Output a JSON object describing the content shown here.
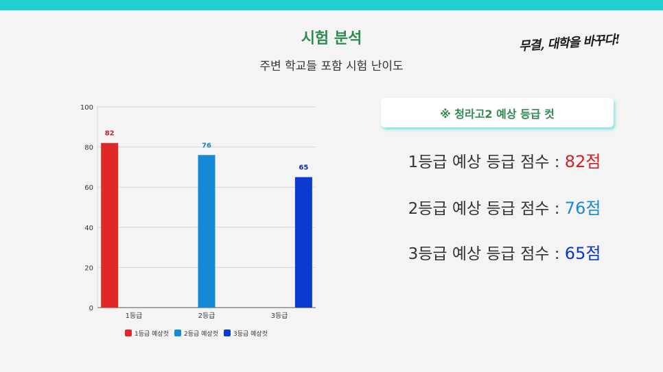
{
  "header": {
    "title": "시험 분석",
    "subtitle": "주변 학교들 포함 시험 난이도",
    "slogan": "무결, 대학을 바꾸다!"
  },
  "info": {
    "card_title": "※ 청라고2 예상 등급 컷",
    "scores": [
      {
        "label": "1등급 예상 등급 점수 : ",
        "value": "82점",
        "color": "#d42020"
      },
      {
        "label": "2등급 예상 등급 점수 : ",
        "value": "76점",
        "color": "#1a8ad6"
      },
      {
        "label": "3등급 예상 등급 점수 : ",
        "value": "65점",
        "color": "#0a36c9"
      }
    ]
  },
  "chart_data": {
    "type": "bar",
    "categories": [
      "1등급",
      "2등급",
      "3등급"
    ],
    "ylim": [
      0,
      100
    ],
    "yticks": [
      0,
      20,
      40,
      60,
      80,
      100
    ],
    "grid": true,
    "legend_position": "bottom",
    "series": [
      {
        "name": "1등급 예상컷",
        "values": [
          82,
          null,
          null
        ],
        "color": "#e02828",
        "label_color": "#c82020"
      },
      {
        "name": "2등급 예상컷",
        "values": [
          null,
          76,
          null
        ],
        "color": "#168ad6",
        "label_color": "#1a7fc4"
      },
      {
        "name": "3등급 예상컷",
        "values": [
          null,
          null,
          65
        ],
        "color": "#0b3ad1",
        "label_color": "#0b2ea8"
      }
    ]
  }
}
